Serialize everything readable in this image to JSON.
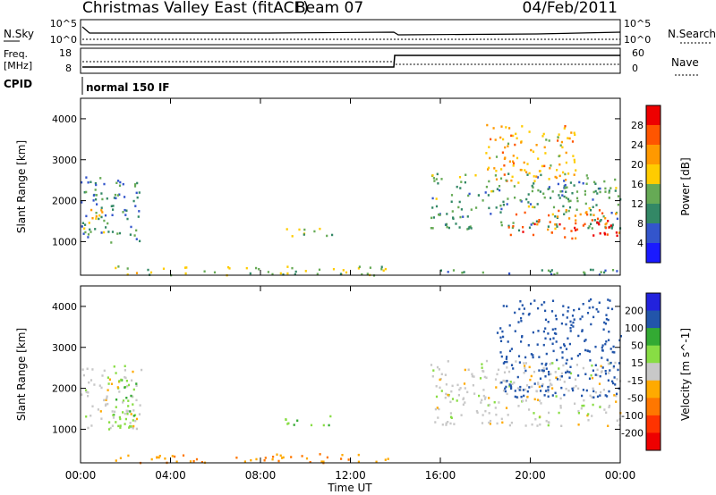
{
  "header": {
    "title": "Christmas Valley East (fitACF)",
    "beam": "Beam 07",
    "date": "04/Feb/2011"
  },
  "top_panels": {
    "nsky": {
      "left_label": "N.Sky",
      "right_label": "N.Search",
      "left_ticks": [
        "10^5",
        "10^0"
      ],
      "right_ticks": [
        "10^5",
        "10^0"
      ]
    },
    "freq": {
      "left_label_line1": "Freq.",
      "left_label_line2": "[MHz]",
      "left_ticks": [
        "18",
        "8"
      ],
      "right_label": "Nave",
      "right_ticks": [
        "60",
        "0"
      ]
    },
    "cpid": {
      "label": "CPID",
      "text": "normal 150 IF"
    }
  },
  "colors": {
    "power_scale": [
      "#1a1aff",
      "#3355cc",
      "#338866",
      "#66aa55",
      "#ffcc00",
      "#ff9900",
      "#ff5500",
      "#ee0000"
    ],
    "velocity_scale": [
      "#2222dd",
      "#2255aa",
      "#33aa33",
      "#88dd44",
      "#c8c8c8",
      "#ffaa00",
      "#ff7700",
      "#ff3300",
      "#ee0000"
    ]
  },
  "chart_data": [
    {
      "type": "heatmap",
      "name": "power",
      "xlabel": "",
      "ylabel": "Slant Range [km]",
      "colorbar_label": "Power [dB]",
      "colorbar_ticks": [
        "28",
        "24",
        "20",
        "16",
        "12",
        "8",
        "4"
      ],
      "x_ticks": [
        "00:00",
        "04:00",
        "08:00",
        "12:00",
        "16:00",
        "20:00",
        "00:00"
      ],
      "y_ticks": [
        "4000",
        "3000",
        "2000",
        "1000"
      ],
      "xlim_hours": [
        0,
        24
      ],
      "ylim_km": [
        180,
        4500
      ],
      "regions": [
        {
          "t": [
            0.0,
            2.7
          ],
          "r": [
            1000,
            2600
          ],
          "level": 9
        },
        {
          "t": [
            0.0,
            1.0
          ],
          "r": [
            1200,
            1900
          ],
          "level": 18
        },
        {
          "t": [
            8.9,
            11.2
          ],
          "r": [
            1100,
            1350
          ],
          "level": 14
        },
        {
          "t": [
            1.5,
            14.0
          ],
          "r": [
            200,
            420
          ],
          "level": 16
        },
        {
          "t": [
            15.5,
            24.0
          ],
          "r": [
            1300,
            2700
          ],
          "level": 12
        },
        {
          "t": [
            19.0,
            24.0
          ],
          "r": [
            1100,
            1800
          ],
          "level": 26
        },
        {
          "t": [
            18.0,
            22.0
          ],
          "r": [
            2500,
            3900
          ],
          "level": 20
        },
        {
          "t": [
            15.0,
            24.0
          ],
          "r": [
            200,
            350
          ],
          "level": 10
        }
      ]
    },
    {
      "type": "heatmap",
      "name": "velocity",
      "xlabel": "Time UT",
      "ylabel": "Slant Range [km]",
      "colorbar_label": "Velocity [m s^-1]",
      "colorbar_ticks": [
        "200",
        "100",
        "50",
        "15",
        "-15",
        "-50",
        "-100",
        "-200"
      ],
      "x_ticks": [
        "00:00",
        "04:00",
        "08:00",
        "12:00",
        "16:00",
        "20:00",
        "00:00"
      ],
      "y_ticks": [
        "4000",
        "3000",
        "2000",
        "1000"
      ],
      "xlim_hours": [
        0,
        24
      ],
      "ylim_km": [
        180,
        4500
      ],
      "regions": [
        {
          "t": [
            0.0,
            2.7
          ],
          "r": [
            1000,
            2600
          ],
          "level": 0
        },
        {
          "t": [
            1.0,
            2.5
          ],
          "r": [
            1000,
            2300
          ],
          "level": 40
        },
        {
          "t": [
            8.9,
            11.2
          ],
          "r": [
            1100,
            1350
          ],
          "level": 40
        },
        {
          "t": [
            1.5,
            14.0
          ],
          "r": [
            200,
            420
          ],
          "level": -50
        },
        {
          "t": [
            15.5,
            24.0
          ],
          "r": [
            1100,
            2700
          ],
          "level": 0
        },
        {
          "t": [
            18.5,
            24.0
          ],
          "r": [
            1800,
            4200
          ],
          "level": 150
        }
      ]
    }
  ]
}
